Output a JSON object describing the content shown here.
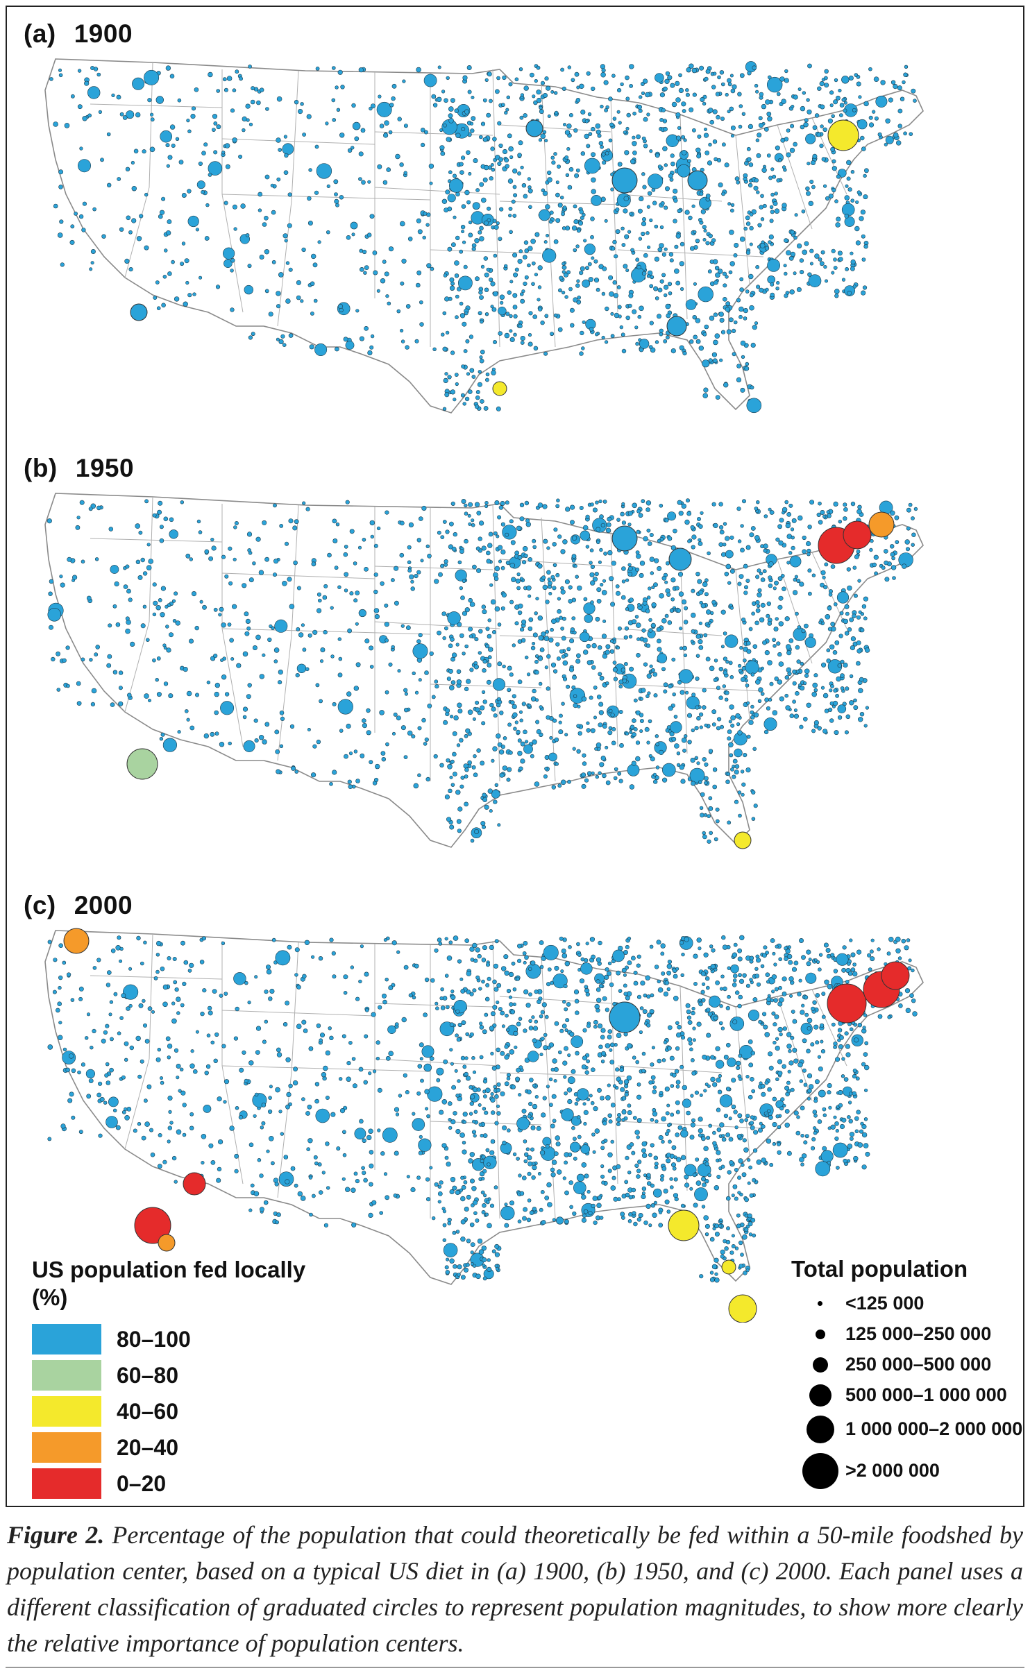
{
  "panels": [
    {
      "label": "(a)",
      "year": "1900"
    },
    {
      "label": "(b)",
      "year": "1950"
    },
    {
      "label": "(c)",
      "year": "2000"
    }
  ],
  "legend_fed": {
    "title_line1": "US population fed locally",
    "title_line2": "(%)",
    "classes": [
      {
        "label": "80–100",
        "color": "#2aa3d9"
      },
      {
        "label": "60–80",
        "color": "#a9d3a0"
      },
      {
        "label": "40–60",
        "color": "#f4e92c"
      },
      {
        "label": "20–40",
        "color": "#f59a2a"
      },
      {
        "label": "0–20",
        "color": "#e52b2b"
      }
    ]
  },
  "legend_pop": {
    "title": "Total population",
    "classes": [
      "<125 000",
      "125 000–250 000",
      "250 000–500 000",
      "500 000–1 000 000",
      "1 000 000–2 000 000",
      ">2 000 000"
    ]
  },
  "caption": {
    "figure_label": "Figure 2.",
    "text": "Percentage of the population that could theoretically be fed within a 50-mile foodshed by population center, based on a typical US diet in (a) 1900, (b) 1950, and (c) 2000. Each panel uses a different classification of graduated circles to represent population magnitudes, to show more clearly the relative importance of population centers."
  },
  "colors": {
    "fed_80_100": "#2aa3d9",
    "fed_60_80": "#a9d3a0",
    "fed_40_60": "#f4e92c",
    "fed_20_40": "#f59a2a",
    "fed_0_20": "#e52b2b",
    "state_outline": "#8a8a8a"
  }
}
